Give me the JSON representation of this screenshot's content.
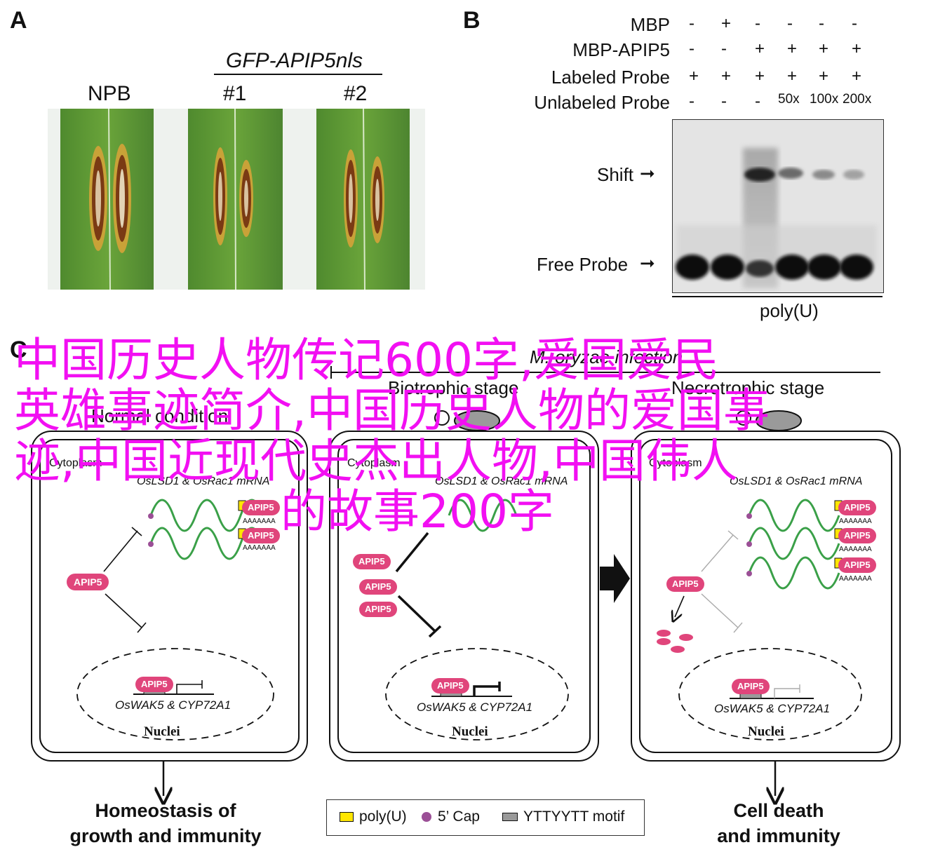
{
  "panel_a": {
    "letter": "A",
    "construct_label": "GFP-APIP5nls",
    "lane_labels": [
      "NPB",
      "#1",
      "#2"
    ]
  },
  "panel_b": {
    "letter": "B",
    "row_labels": [
      "MBP",
      "MBP-APIP5",
      "Labeled Probe",
      "Unlabeled Probe"
    ],
    "rows": [
      [
        "-",
        "+",
        "-",
        "-",
        "-",
        "-"
      ],
      [
        "-",
        "-",
        "+",
        "+",
        "+",
        "+"
      ],
      [
        "+",
        "+",
        "+",
        "+",
        "+",
        "+"
      ],
      [
        "-",
        "-",
        "-",
        "50x",
        "100x",
        "200x"
      ]
    ],
    "shift_label": "Shift",
    "free_probe_label": "Free Probe",
    "probe_name": "poly(U)"
  },
  "panel_c": {
    "letter": "C",
    "pathogen_label": "M. oryzae infection",
    "stage_biotrophic": "Biotrophic stage",
    "stage_necrotrophic": "Necrotrophic stage",
    "normal_condition": "Normal condition",
    "cytoplasm": "Cytoplasm",
    "mrna_label": "OsLSD1 & OsRac1 mRNA",
    "mrna_label_short": "OsLSD1 & OsRac1 mRNA",
    "apip5": "APIP5",
    "polya": "AAAAAAA",
    "target_genes": "OsWAK5 & CYP72A1",
    "nuclei": "Nuclei",
    "outcome_left": [
      "Homeostasis of",
      "growth and immunity"
    ],
    "outcome_right": [
      "Cell death",
      "and immunity"
    ],
    "legend": {
      "poly_u": "poly(U)",
      "cap": "5’ Cap",
      "motif": "YTTYYTT motif"
    },
    "colors": {
      "apip5": "#e0457b",
      "mrna": "#3aa048",
      "polyu": "#ffe600",
      "cap": "#9b4f96",
      "motif": "#9a9a9a"
    }
  },
  "watermark": {
    "line1": "中国历史人物传记600字,爱国爱民",
    "line2": "英雄事迹简介,中国历史人物的爱国事",
    "line3": "迹,中国近现代史杰出人物,中国伟人",
    "line4": "的故事200字",
    "color": "#f20ff2"
  }
}
